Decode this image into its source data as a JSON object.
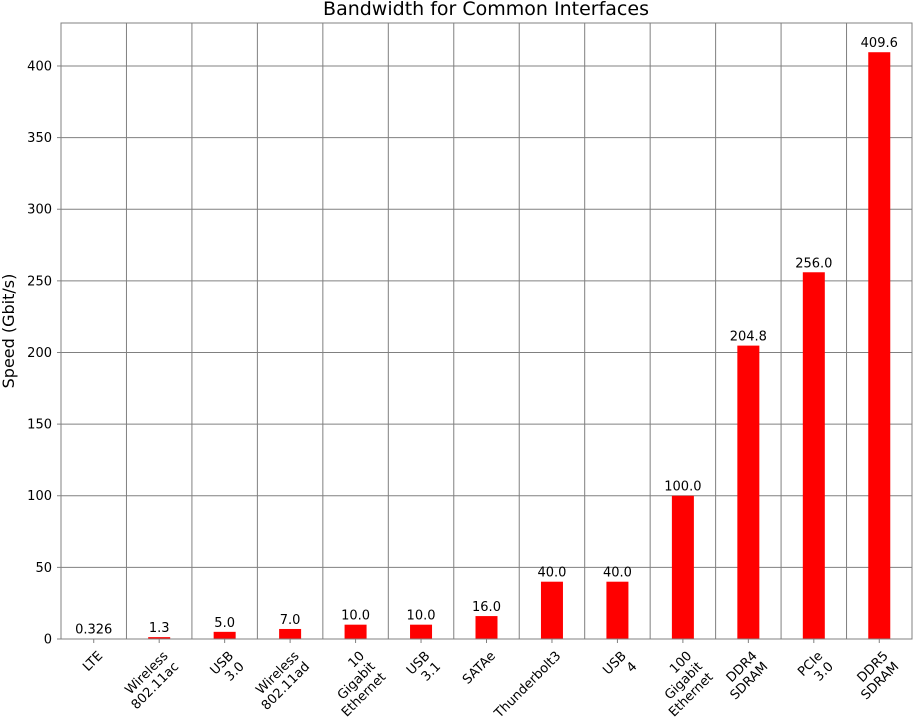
{
  "chart_data": {
    "type": "bar",
    "title": "Bandwidth for Common Interfaces",
    "xlabel": "",
    "ylabel": "Speed (Gbit/s)",
    "ylim": [
      0,
      430
    ],
    "yticks": [
      0,
      50,
      100,
      150,
      200,
      250,
      300,
      350,
      400
    ],
    "grid": true,
    "bar_color": "#ff0000",
    "categories": [
      [
        "LTE"
      ],
      [
        "Wireless",
        "802.11ac"
      ],
      [
        "USB",
        "3.0"
      ],
      [
        "Wireless",
        "802.11ad"
      ],
      [
        "10",
        "Gigabit",
        "Ethernet"
      ],
      [
        "USB",
        "3.1"
      ],
      [
        "SATAe"
      ],
      [
        "Thunderbolt3"
      ],
      [
        "USB",
        "4"
      ],
      [
        "100",
        "Gigabit",
        "Ethernet"
      ],
      [
        "DDR4",
        "SDRAM"
      ],
      [
        "PCIe",
        "3.0"
      ],
      [
        "DDR5",
        "SDRAM"
      ]
    ],
    "values": [
      0.326,
      1.3,
      5.0,
      7.0,
      10.0,
      10.0,
      16.0,
      40.0,
      40.0,
      100.0,
      204.8,
      256.0,
      409.6
    ],
    "value_labels": [
      "0.326",
      "1.3",
      "5.0",
      "7.0",
      "10.0",
      "10.0",
      "16.0",
      "40.0",
      "40.0",
      "100.0",
      "204.8",
      "256.0",
      "409.6"
    ]
  }
}
